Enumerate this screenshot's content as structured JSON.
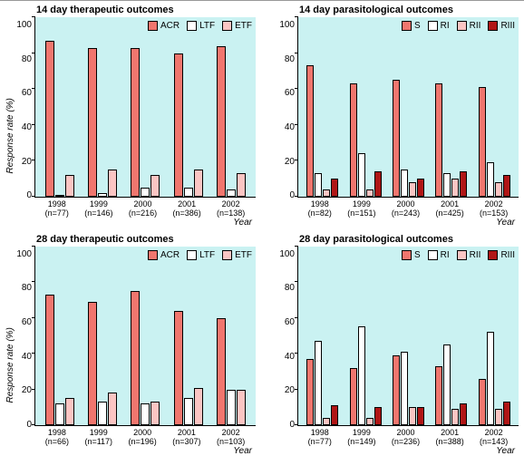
{
  "ylabel": "Response rate (%)",
  "xlabel": "Year",
  "ymax": 100,
  "ytick_step": 20,
  "colors": {
    "plot_bg": "#caf2f2",
    "ACR": "#f0766e",
    "LTF": "#ffffff",
    "ETF": "#fbc5c3",
    "S": "#f0766e",
    "RI": "#ffffff",
    "RII": "#fbc5c3",
    "RIII": "#b01616"
  },
  "panels": [
    {
      "title": "14 day therapeutic outcomes",
      "series": [
        "ACR",
        "LTF",
        "ETF"
      ],
      "years": [
        {
          "year": "1998",
          "n": 77,
          "v": {
            "ACR": 87,
            "LTF": 1,
            "ETF": 12
          }
        },
        {
          "year": "1999",
          "n": 146,
          "v": {
            "ACR": 83,
            "LTF": 2,
            "ETF": 15
          }
        },
        {
          "year": "2000",
          "n": 216,
          "v": {
            "ACR": 83,
            "LTF": 5,
            "ETF": 12
          }
        },
        {
          "year": "2001",
          "n": 386,
          "v": {
            "ACR": 80,
            "LTF": 5,
            "ETF": 15
          }
        },
        {
          "year": "2002",
          "n": 138,
          "v": {
            "ACR": 84,
            "LTF": 4,
            "ETF": 13
          }
        }
      ]
    },
    {
      "title": "14 day parasitological outcomes",
      "series": [
        "S",
        "RI",
        "RII",
        "RIII"
      ],
      "years": [
        {
          "year": "1998",
          "n": 82,
          "v": {
            "S": 73,
            "RI": 13,
            "RII": 4,
            "RIII": 10
          }
        },
        {
          "year": "1999",
          "n": 151,
          "v": {
            "S": 63,
            "RI": 24,
            "RII": 4,
            "RIII": 14
          }
        },
        {
          "year": "2000",
          "n": 243,
          "v": {
            "S": 65,
            "RI": 15,
            "RII": 8,
            "RIII": 10
          }
        },
        {
          "year": "2001",
          "n": 425,
          "v": {
            "S": 63,
            "RI": 13,
            "RII": 10,
            "RIII": 14
          }
        },
        {
          "year": "2002",
          "n": 153,
          "v": {
            "S": 61,
            "RI": 19,
            "RII": 8,
            "RIII": 12
          }
        }
      ]
    },
    {
      "title": "28 day therapeutic outcomes",
      "series": [
        "ACR",
        "LTF",
        "ETF"
      ],
      "years": [
        {
          "year": "1998",
          "n": 66,
          "v": {
            "ACR": 73,
            "LTF": 12,
            "ETF": 15
          }
        },
        {
          "year": "1999",
          "n": 117,
          "v": {
            "ACR": 69,
            "LTF": 13,
            "ETF": 18
          }
        },
        {
          "year": "2000",
          "n": 196,
          "v": {
            "ACR": 75,
            "LTF": 12,
            "ETF": 13
          }
        },
        {
          "year": "2001",
          "n": 307,
          "v": {
            "ACR": 64,
            "LTF": 15,
            "ETF": 21
          }
        },
        {
          "year": "2002",
          "n": 103,
          "v": {
            "ACR": 60,
            "LTF": 20,
            "ETF": 20
          }
        }
      ]
    },
    {
      "title": "28 day parasitological outcomes",
      "series": [
        "S",
        "RI",
        "RII",
        "RIII"
      ],
      "years": [
        {
          "year": "1998",
          "n": 77,
          "v": {
            "S": 37,
            "RI": 47,
            "RII": 4,
            "RIII": 11
          }
        },
        {
          "year": "1999",
          "n": 149,
          "v": {
            "S": 32,
            "RI": 55,
            "RII": 4,
            "RIII": 10
          }
        },
        {
          "year": "2000",
          "n": 236,
          "v": {
            "S": 39,
            "RI": 41,
            "RII": 10,
            "RIII": 10
          }
        },
        {
          "year": "2001",
          "n": 388,
          "v": {
            "S": 33,
            "RI": 45,
            "RII": 9,
            "RIII": 12
          }
        },
        {
          "year": "2002",
          "n": 143,
          "v": {
            "S": 26,
            "RI": 52,
            "RII": 9,
            "RIII": 13
          }
        }
      ]
    }
  ]
}
